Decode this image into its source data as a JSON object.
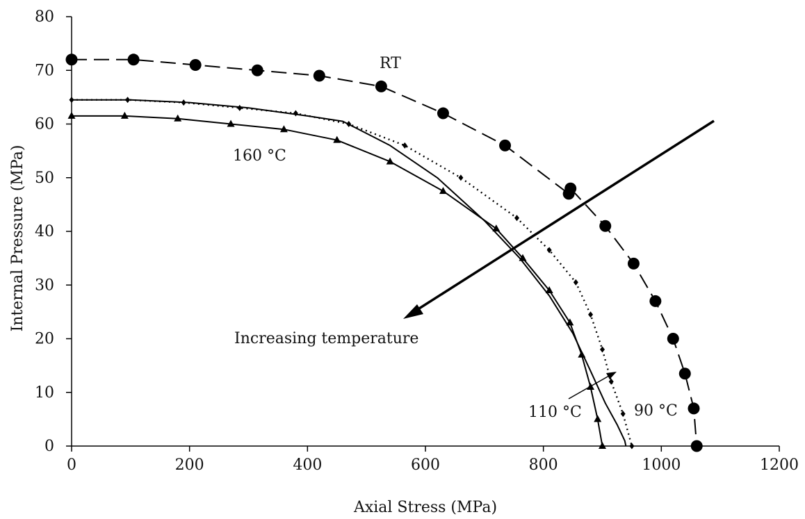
{
  "chart_data": {
    "type": "line",
    "xlabel": "Axial Stress (MPa)",
    "ylabel": "Internal Pressure (MPa)",
    "xlim": [
      0,
      1200
    ],
    "ylim": [
      0,
      80
    ],
    "xticks": [
      0,
      200,
      400,
      600,
      800,
      1000,
      1200
    ],
    "yticks": [
      0,
      10,
      20,
      30,
      40,
      50,
      60,
      70,
      80
    ],
    "grid": false,
    "legend": "none",
    "series": [
      {
        "name": "RT",
        "line_style": "dashed",
        "marker": "circle",
        "x": [
          0,
          105,
          210,
          315,
          420,
          525,
          630,
          735,
          843,
          846,
          905,
          953,
          990,
          1020,
          1040,
          1055,
          1060
        ],
        "y": [
          72,
          72,
          71,
          70,
          69,
          67,
          62,
          56,
          47,
          48,
          41,
          34,
          27,
          20,
          13.5,
          7,
          0
        ]
      },
      {
        "name": "90 °C",
        "line_style": "dotted",
        "marker": "diamond",
        "x": [
          0,
          95,
          190,
          285,
          380,
          470,
          565,
          660,
          755,
          810,
          855,
          880,
          900,
          915,
          935,
          950
        ],
        "y": [
          64.5,
          64.5,
          64,
          63,
          62,
          60,
          56,
          50,
          42.5,
          36.5,
          30.5,
          24.5,
          18,
          12,
          6,
          0
        ]
      },
      {
        "name": "110 °C",
        "line_style": "solid",
        "marker": "none",
        "x": [
          0,
          100,
          200,
          300,
          400,
          460,
          540,
          620,
          700,
          760,
          810,
          850,
          880,
          905,
          925,
          938,
          940
        ],
        "y": [
          64.5,
          64.5,
          64,
          63,
          61.5,
          60.5,
          56,
          50,
          42,
          35,
          28,
          21,
          14,
          8,
          4,
          1,
          0
        ]
      },
      {
        "name": "160 °C",
        "line_style": "solid",
        "marker": "triangle",
        "x": [
          0,
          90,
          180,
          270,
          360,
          450,
          540,
          630,
          720,
          765,
          810,
          845,
          865,
          880,
          892,
          900
        ],
        "y": [
          61.5,
          61.5,
          61,
          60,
          59,
          57,
          53,
          47.5,
          40.5,
          35,
          29,
          23,
          17,
          11,
          5,
          0
        ]
      }
    ],
    "annotations": {
      "rt": "RT",
      "t160": "160 °C",
      "t110": "110 °C",
      "t90": "90 °C",
      "arrow": "Increasing temperature"
    }
  }
}
